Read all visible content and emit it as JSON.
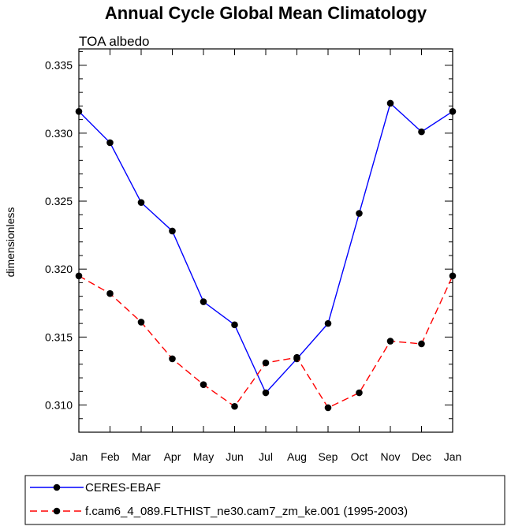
{
  "chart_data": {
    "type": "line",
    "title": "Annual Cycle Global Mean Climatology",
    "subtitle": "TOA albedo",
    "xlabel": "",
    "ylabel": "dimensionless",
    "categories": [
      "Jan",
      "Feb",
      "Mar",
      "Apr",
      "May",
      "Jun",
      "Jul",
      "Aug",
      "Sep",
      "Oct",
      "Nov",
      "Dec",
      "Jan"
    ],
    "ylim": [
      0.308,
      0.3362
    ],
    "yticks": [
      0.31,
      0.315,
      0.32,
      0.325,
      0.33,
      0.335
    ],
    "ytick_labels": [
      "0.310",
      "0.315",
      "0.320",
      "0.325",
      "0.330",
      "0.335"
    ],
    "grid": false,
    "legend_position": "bottom",
    "series": [
      {
        "name": "CERES-EBAF",
        "color": "#0000ff",
        "dash": "solid",
        "values": [
          0.3316,
          0.3293,
          0.3249,
          0.3228,
          0.3176,
          0.3159,
          0.3109,
          0.3134,
          0.316,
          0.3241,
          0.3322,
          0.3301,
          0.3316
        ]
      },
      {
        "name": "f.cam6_4_089.FLTHIST_ne30.cam7_zm_ke.001 (1995-2003)",
        "color": "#ff0000",
        "dash": "dashed",
        "values": [
          0.3195,
          0.3182,
          0.3161,
          0.3134,
          0.3115,
          0.3099,
          0.3131,
          0.3135,
          0.3098,
          0.3109,
          0.3147,
          0.3145,
          0.3195
        ]
      }
    ]
  }
}
